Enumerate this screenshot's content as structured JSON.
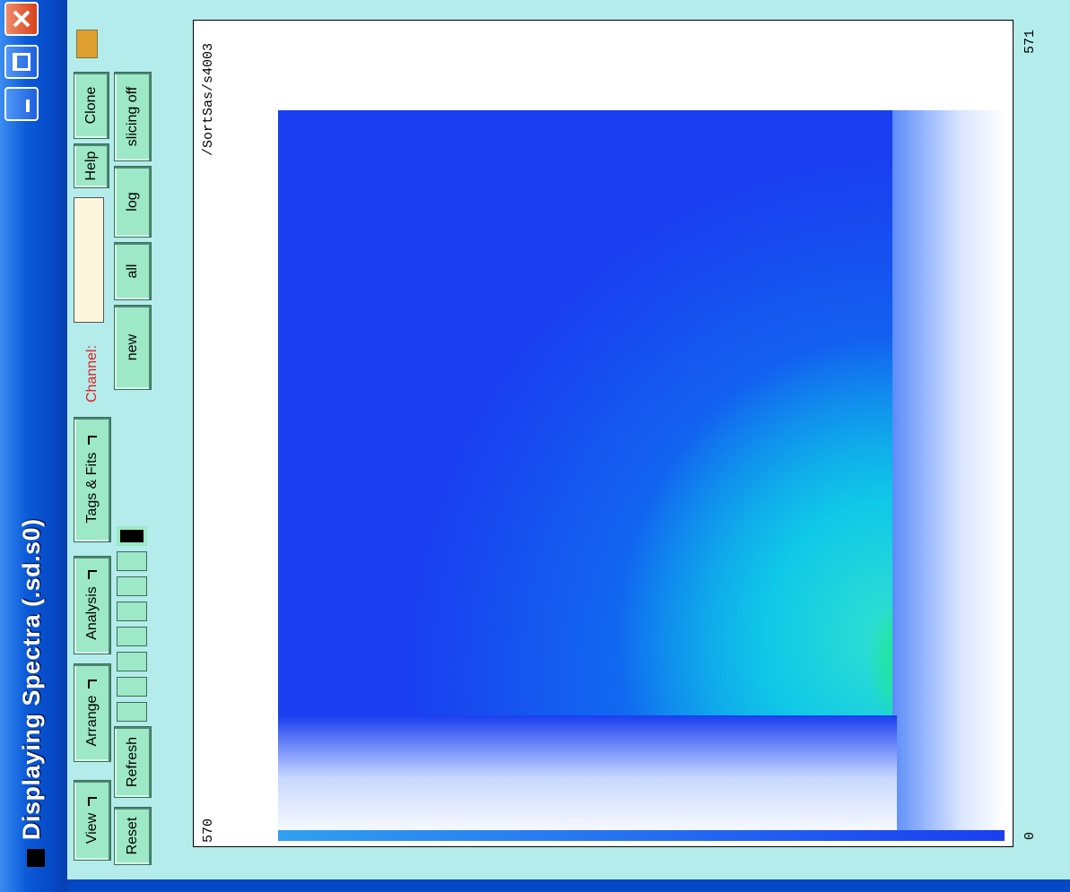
{
  "window": {
    "title": "Displaying Spectra (.sd.s0)"
  },
  "menus": [
    "View",
    "Arrange",
    "Analysis",
    "Tags & Fits"
  ],
  "toolbar": {
    "reset": "Reset",
    "refresh": "Refresh",
    "channel_label": "Channel:",
    "help": "Help",
    "clone": "Clone",
    "new": "new",
    "all": "all",
    "log": "log",
    "slicing": "slicing off"
  },
  "plot": {
    "name": "/SortSas/s4003",
    "y_max": "570",
    "x_max": "571",
    "origin": "0"
  }
}
